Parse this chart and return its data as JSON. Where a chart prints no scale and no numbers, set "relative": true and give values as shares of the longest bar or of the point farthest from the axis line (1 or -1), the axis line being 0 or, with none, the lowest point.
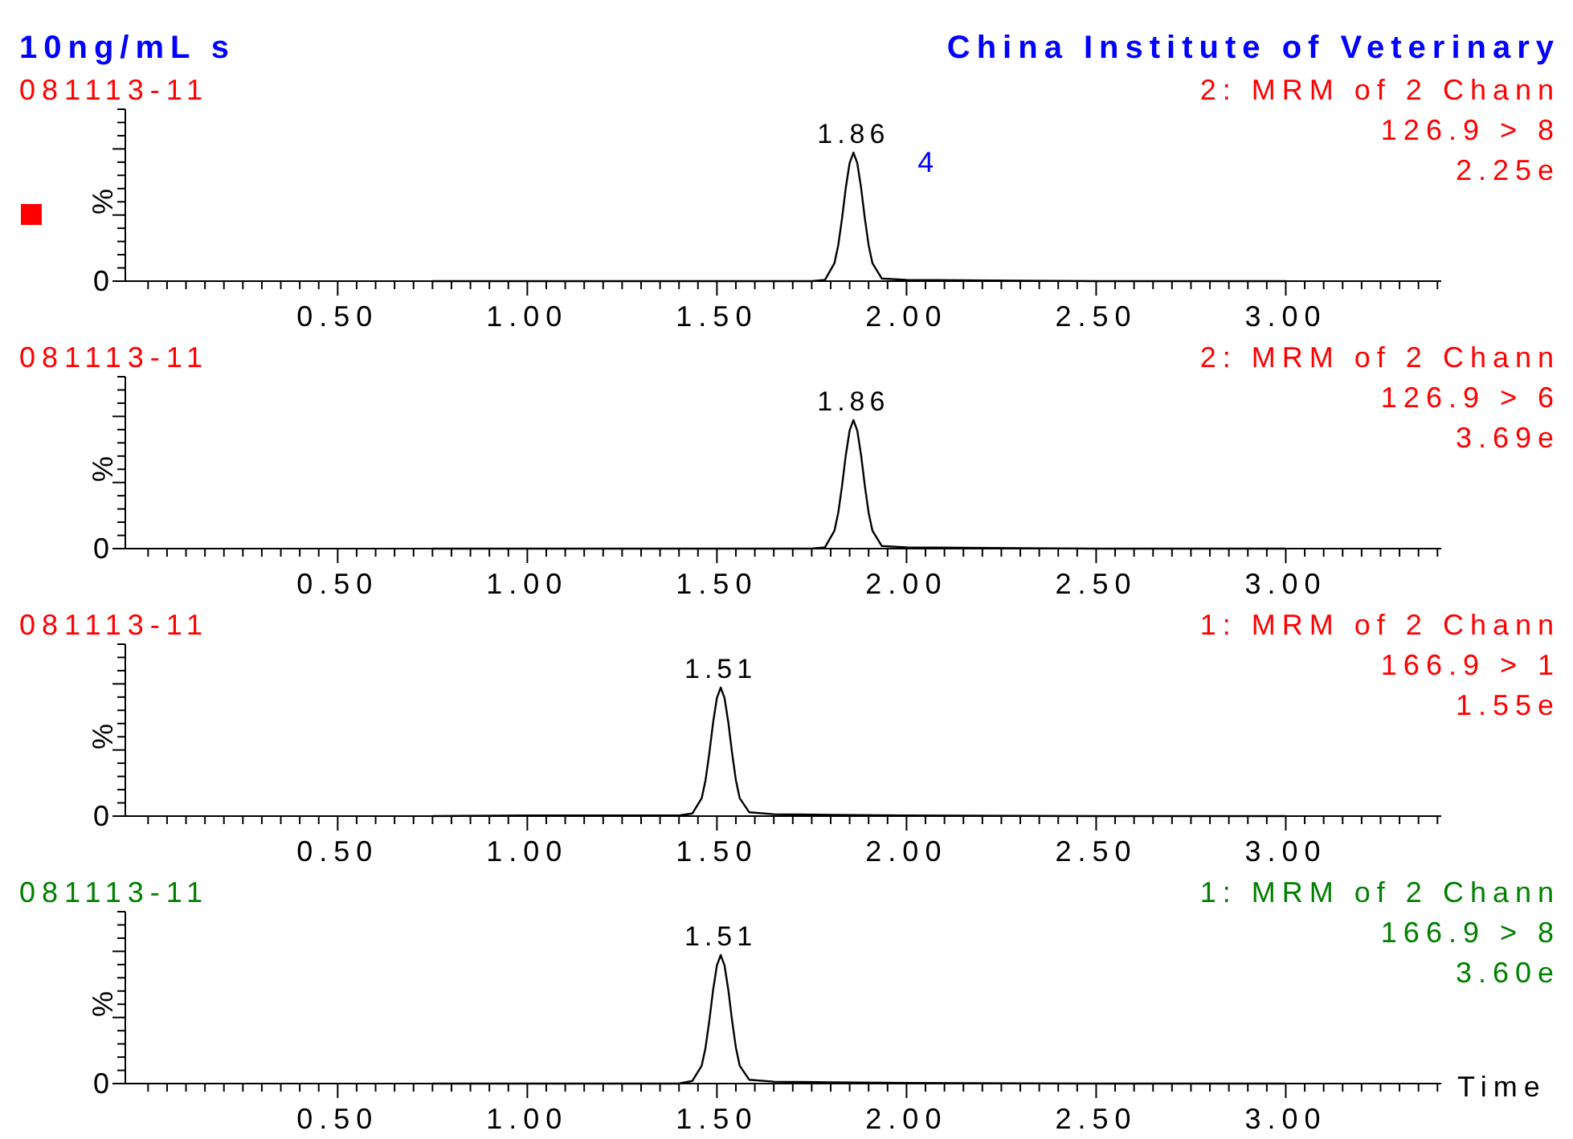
{
  "chart_data": [
    {
      "type": "line",
      "title": "10ng/mL s",
      "subtitle": "China Institute of Veterinary",
      "ylabel": "%",
      "relative": true,
      "xlim": [
        -0.06,
        3.41
      ],
      "xticks": [
        {
          "value": 0,
          "label": null
        },
        {
          "value": 0.05,
          "label": null
        },
        {
          "value": 0.1,
          "label": null
        },
        {
          "value": 0.15,
          "label": null
        },
        {
          "value": 0.2,
          "label": null
        },
        {
          "value": 0.25,
          "label": null
        },
        {
          "value": 0.3,
          "label": null
        },
        {
          "value": 0.35,
          "label": null
        },
        {
          "value": 0.4,
          "label": null
        },
        {
          "value": 0.45,
          "label": null
        },
        {
          "value": 0.5,
          "label": "0.50"
        },
        {
          "value": 0.55,
          "label": null
        },
        {
          "value": 0.6,
          "label": null
        },
        {
          "value": 0.65,
          "label": null
        },
        {
          "value": 0.7,
          "label": null
        },
        {
          "value": 0.75,
          "label": null
        },
        {
          "value": 0.8,
          "label": null
        },
        {
          "value": 0.85,
          "label": null
        },
        {
          "value": 0.9,
          "label": null
        },
        {
          "value": 0.95,
          "label": null
        },
        {
          "value": 1,
          "label": "1.00"
        },
        {
          "value": 1.05,
          "label": null
        },
        {
          "value": 1.1,
          "label": null
        },
        {
          "value": 1.15,
          "label": null
        },
        {
          "value": 1.2,
          "label": null
        },
        {
          "value": 1.25,
          "label": null
        },
        {
          "value": 1.3,
          "label": null
        },
        {
          "value": 1.35,
          "label": null
        },
        {
          "value": 1.4,
          "label": null
        },
        {
          "value": 1.45,
          "label": null
        },
        {
          "value": 1.5,
          "label": "1.50"
        },
        {
          "value": 1.55,
          "label": null
        },
        {
          "value": 1.6,
          "label": null
        },
        {
          "value": 1.65,
          "label": null
        },
        {
          "value": 1.7,
          "label": null
        },
        {
          "value": 1.75,
          "label": null
        },
        {
          "value": 1.8,
          "label": null
        },
        {
          "value": 1.85,
          "label": null
        },
        {
          "value": 1.9,
          "label": null
        },
        {
          "value": 1.95,
          "label": null
        },
        {
          "value": 2,
          "label": "2.00"
        },
        {
          "value": 2.05,
          "label": null
        },
        {
          "value": 2.1,
          "label": null
        },
        {
          "value": 2.15,
          "label": null
        },
        {
          "value": 2.2,
          "label": null
        },
        {
          "value": 2.25,
          "label": null
        },
        {
          "value": 2.3,
          "label": null
        },
        {
          "value": 2.35,
          "label": null
        },
        {
          "value": 2.4,
          "label": null
        },
        {
          "value": 2.45,
          "label": null
        },
        {
          "value": 2.5,
          "label": "2.50"
        },
        {
          "value": 2.55,
          "label": null
        },
        {
          "value": 2.6,
          "label": null
        },
        {
          "value": 2.65,
          "label": null
        },
        {
          "value": 2.7,
          "label": null
        },
        {
          "value": 2.75,
          "label": null
        },
        {
          "value": 2.8,
          "label": null
        },
        {
          "value": 2.85,
          "label": null
        },
        {
          "value": 2.9,
          "label": null
        },
        {
          "value": 2.95,
          "label": null
        },
        {
          "value": 3,
          "label": "3.00"
        },
        {
          "value": 3.05,
          "label": null
        },
        {
          "value": 3.1,
          "label": null
        },
        {
          "value": 3.15,
          "label": null
        },
        {
          "value": 3.2,
          "label": null
        },
        {
          "value": 3.25,
          "label": null
        },
        {
          "value": 3.3,
          "label": null
        },
        {
          "value": 3.35,
          "label": null
        },
        {
          "value": 3.4,
          "label": null
        }
      ],
      "annotations": [
        "081113-11",
        "2: MRM of 2 Chann",
        "126.9 > 8",
        "2.25e",
        "0",
        "1.86",
        "4"
      ],
      "series": [
        {
          "color": "#000000",
          "x": [
            0.75,
            1.0,
            1.5,
            1.75,
            1.785,
            1.81,
            1.82,
            1.83,
            1.84,
            1.85,
            1.86,
            1.87,
            1.88,
            1.89,
            1.9,
            1.91,
            1.935,
            2.0,
            2.5,
            3.0
          ],
          "values": [
            0,
            0,
            0,
            0,
            0.01,
            0.14,
            0.28,
            0.49,
            0.73,
            0.92,
            1,
            0.92,
            0.73,
            0.49,
            0.28,
            0.14,
            0.02,
            0.01,
            0,
            0
          ]
        }
      ]
    },
    {
      "type": "line",
      "ylabel": "%",
      "relative": true,
      "xlim": [
        -0.06,
        3.41
      ],
      "xticks": [
        {
          "value": 0,
          "label": null
        },
        {
          "value": 0.05,
          "label": null
        },
        {
          "value": 0.1,
          "label": null
        },
        {
          "value": 0.15,
          "label": null
        },
        {
          "value": 0.2,
          "label": null
        },
        {
          "value": 0.25,
          "label": null
        },
        {
          "value": 0.3,
          "label": null
        },
        {
          "value": 0.35,
          "label": null
        },
        {
          "value": 0.4,
          "label": null
        },
        {
          "value": 0.45,
          "label": null
        },
        {
          "value": 0.5,
          "label": "0.50"
        },
        {
          "value": 0.55,
          "label": null
        },
        {
          "value": 0.6,
          "label": null
        },
        {
          "value": 0.65,
          "label": null
        },
        {
          "value": 0.7,
          "label": null
        },
        {
          "value": 0.75,
          "label": null
        },
        {
          "value": 0.8,
          "label": null
        },
        {
          "value": 0.85,
          "label": null
        },
        {
          "value": 0.9,
          "label": null
        },
        {
          "value": 0.95,
          "label": null
        },
        {
          "value": 1,
          "label": "1.00"
        },
        {
          "value": 1.05,
          "label": null
        },
        {
          "value": 1.1,
          "label": null
        },
        {
          "value": 1.15,
          "label": null
        },
        {
          "value": 1.2,
          "label": null
        },
        {
          "value": 1.25,
          "label": null
        },
        {
          "value": 1.3,
          "label": null
        },
        {
          "value": 1.35,
          "label": null
        },
        {
          "value": 1.4,
          "label": null
        },
        {
          "value": 1.45,
          "label": null
        },
        {
          "value": 1.5,
          "label": "1.50"
        },
        {
          "value": 1.55,
          "label": null
        },
        {
          "value": 1.6,
          "label": null
        },
        {
          "value": 1.65,
          "label": null
        },
        {
          "value": 1.7,
          "label": null
        },
        {
          "value": 1.75,
          "label": null
        },
        {
          "value": 1.8,
          "label": null
        },
        {
          "value": 1.85,
          "label": null
        },
        {
          "value": 1.9,
          "label": null
        },
        {
          "value": 1.95,
          "label": null
        },
        {
          "value": 2,
          "label": "2.00"
        },
        {
          "value": 2.05,
          "label": null
        },
        {
          "value": 2.1,
          "label": null
        },
        {
          "value": 2.15,
          "label": null
        },
        {
          "value": 2.2,
          "label": null
        },
        {
          "value": 2.25,
          "label": null
        },
        {
          "value": 2.3,
          "label": null
        },
        {
          "value": 2.35,
          "label": null
        },
        {
          "value": 2.4,
          "label": null
        },
        {
          "value": 2.45,
          "label": null
        },
        {
          "value": 2.5,
          "label": "2.50"
        },
        {
          "value": 2.55,
          "label": null
        },
        {
          "value": 2.6,
          "label": null
        },
        {
          "value": 2.65,
          "label": null
        },
        {
          "value": 2.7,
          "label": null
        },
        {
          "value": 2.75,
          "label": null
        },
        {
          "value": 2.8,
          "label": null
        },
        {
          "value": 2.85,
          "label": null
        },
        {
          "value": 2.9,
          "label": null
        },
        {
          "value": 2.95,
          "label": null
        },
        {
          "value": 3,
          "label": "3.00"
        },
        {
          "value": 3.05,
          "label": null
        },
        {
          "value": 3.1,
          "label": null
        },
        {
          "value": 3.15,
          "label": null
        },
        {
          "value": 3.2,
          "label": null
        },
        {
          "value": 3.25,
          "label": null
        },
        {
          "value": 3.3,
          "label": null
        },
        {
          "value": 3.35,
          "label": null
        },
        {
          "value": 3.4,
          "label": null
        }
      ],
      "annotations": [
        "081113-11",
        "2: MRM of 2 Chann",
        "126.9 > 6",
        "3.69e",
        "0",
        "1.86"
      ],
      "series": [
        {
          "color": "#000000",
          "x": [
            0.75,
            1.0,
            1.5,
            1.75,
            1.785,
            1.81,
            1.82,
            1.83,
            1.84,
            1.85,
            1.86,
            1.87,
            1.88,
            1.89,
            1.9,
            1.91,
            1.935,
            2.0,
            2.5,
            3.0
          ],
          "values": [
            0,
            0,
            0,
            0,
            0.01,
            0.14,
            0.28,
            0.49,
            0.73,
            0.92,
            1,
            0.92,
            0.73,
            0.49,
            0.28,
            0.14,
            0.02,
            0.01,
            0,
            0
          ]
        }
      ]
    },
    {
      "type": "line",
      "ylabel": "%",
      "relative": true,
      "xlim": [
        -0.06,
        3.41
      ],
      "xticks": [
        {
          "value": 0,
          "label": null
        },
        {
          "value": 0.05,
          "label": null
        },
        {
          "value": 0.1,
          "label": null
        },
        {
          "value": 0.15,
          "label": null
        },
        {
          "value": 0.2,
          "label": null
        },
        {
          "value": 0.25,
          "label": null
        },
        {
          "value": 0.3,
          "label": null
        },
        {
          "value": 0.35,
          "label": null
        },
        {
          "value": 0.4,
          "label": null
        },
        {
          "value": 0.45,
          "label": null
        },
        {
          "value": 0.5,
          "label": "0.50"
        },
        {
          "value": 0.55,
          "label": null
        },
        {
          "value": 0.6,
          "label": null
        },
        {
          "value": 0.65,
          "label": null
        },
        {
          "value": 0.7,
          "label": null
        },
        {
          "value": 0.75,
          "label": null
        },
        {
          "value": 0.8,
          "label": null
        },
        {
          "value": 0.85,
          "label": null
        },
        {
          "value": 0.9,
          "label": null
        },
        {
          "value": 0.95,
          "label": null
        },
        {
          "value": 1,
          "label": "1.00"
        },
        {
          "value": 1.05,
          "label": null
        },
        {
          "value": 1.1,
          "label": null
        },
        {
          "value": 1.15,
          "label": null
        },
        {
          "value": 1.2,
          "label": null
        },
        {
          "value": 1.25,
          "label": null
        },
        {
          "value": 1.3,
          "label": null
        },
        {
          "value": 1.35,
          "label": null
        },
        {
          "value": 1.4,
          "label": null
        },
        {
          "value": 1.45,
          "label": null
        },
        {
          "value": 1.5,
          "label": "1.50"
        },
        {
          "value": 1.55,
          "label": null
        },
        {
          "value": 1.6,
          "label": null
        },
        {
          "value": 1.65,
          "label": null
        },
        {
          "value": 1.7,
          "label": null
        },
        {
          "value": 1.75,
          "label": null
        },
        {
          "value": 1.8,
          "label": null
        },
        {
          "value": 1.85,
          "label": null
        },
        {
          "value": 1.9,
          "label": null
        },
        {
          "value": 1.95,
          "label": null
        },
        {
          "value": 2,
          "label": "2.00"
        },
        {
          "value": 2.05,
          "label": null
        },
        {
          "value": 2.1,
          "label": null
        },
        {
          "value": 2.15,
          "label": null
        },
        {
          "value": 2.2,
          "label": null
        },
        {
          "value": 2.25,
          "label": null
        },
        {
          "value": 2.3,
          "label": null
        },
        {
          "value": 2.35,
          "label": null
        },
        {
          "value": 2.4,
          "label": null
        },
        {
          "value": 2.45,
          "label": null
        },
        {
          "value": 2.5,
          "label": "2.50"
        },
        {
          "value": 2.55,
          "label": null
        },
        {
          "value": 2.6,
          "label": null
        },
        {
          "value": 2.65,
          "label": null
        },
        {
          "value": 2.7,
          "label": null
        },
        {
          "value": 2.75,
          "label": null
        },
        {
          "value": 2.8,
          "label": null
        },
        {
          "value": 2.85,
          "label": null
        },
        {
          "value": 2.9,
          "label": null
        },
        {
          "value": 2.95,
          "label": null
        },
        {
          "value": 3,
          "label": "3.00"
        },
        {
          "value": 3.05,
          "label": null
        },
        {
          "value": 3.1,
          "label": null
        },
        {
          "value": 3.15,
          "label": null
        },
        {
          "value": 3.2,
          "label": null
        },
        {
          "value": 3.25,
          "label": null
        },
        {
          "value": 3.3,
          "label": null
        },
        {
          "value": 3.35,
          "label": null
        },
        {
          "value": 3.4,
          "label": null
        }
      ],
      "annotations": [
        "081113-11",
        "1: MRM of 2 Chann",
        "166.9 > 1",
        "1.55e",
        "0",
        "1.51"
      ],
      "series": [
        {
          "color": "#000000",
          "x": [
            0.75,
            1.0,
            1.25,
            1.4,
            1.435,
            1.46,
            1.47,
            1.48,
            1.49,
            1.5,
            1.51,
            1.52,
            1.53,
            1.54,
            1.55,
            1.56,
            1.585,
            1.65,
            1.8,
            2.0,
            2.5,
            3.0
          ],
          "values": [
            0,
            0.005,
            0.005,
            0.005,
            0.02,
            0.14,
            0.28,
            0.49,
            0.73,
            0.92,
            1,
            0.92,
            0.73,
            0.49,
            0.28,
            0.14,
            0.03,
            0.015,
            0.01,
            0.005,
            0,
            0
          ]
        }
      ]
    },
    {
      "type": "line",
      "ylabel": "%",
      "relative": true,
      "xlim": [
        -0.06,
        3.41
      ],
      "xticks": [
        {
          "value": 0,
          "label": null
        },
        {
          "value": 0.05,
          "label": null
        },
        {
          "value": 0.1,
          "label": null
        },
        {
          "value": 0.15,
          "label": null
        },
        {
          "value": 0.2,
          "label": null
        },
        {
          "value": 0.25,
          "label": null
        },
        {
          "value": 0.3,
          "label": null
        },
        {
          "value": 0.35,
          "label": null
        },
        {
          "value": 0.4,
          "label": null
        },
        {
          "value": 0.45,
          "label": null
        },
        {
          "value": 0.5,
          "label": "0.50"
        },
        {
          "value": 0.55,
          "label": null
        },
        {
          "value": 0.6,
          "label": null
        },
        {
          "value": 0.65,
          "label": null
        },
        {
          "value": 0.7,
          "label": null
        },
        {
          "value": 0.75,
          "label": null
        },
        {
          "value": 0.8,
          "label": null
        },
        {
          "value": 0.85,
          "label": null
        },
        {
          "value": 0.9,
          "label": null
        },
        {
          "value": 0.95,
          "label": null
        },
        {
          "value": 1,
          "label": "1.00"
        },
        {
          "value": 1.05,
          "label": null
        },
        {
          "value": 1.1,
          "label": null
        },
        {
          "value": 1.15,
          "label": null
        },
        {
          "value": 1.2,
          "label": null
        },
        {
          "value": 1.25,
          "label": null
        },
        {
          "value": 1.3,
          "label": null
        },
        {
          "value": 1.35,
          "label": null
        },
        {
          "value": 1.4,
          "label": null
        },
        {
          "value": 1.45,
          "label": null
        },
        {
          "value": 1.5,
          "label": "1.50"
        },
        {
          "value": 1.55,
          "label": null
        },
        {
          "value": 1.6,
          "label": null
        },
        {
          "value": 1.65,
          "label": null
        },
        {
          "value": 1.7,
          "label": null
        },
        {
          "value": 1.75,
          "label": null
        },
        {
          "value": 1.8,
          "label": null
        },
        {
          "value": 1.85,
          "label": null
        },
        {
          "value": 1.9,
          "label": null
        },
        {
          "value": 1.95,
          "label": null
        },
        {
          "value": 2,
          "label": "2.00"
        },
        {
          "value": 2.05,
          "label": null
        },
        {
          "value": 2.1,
          "label": null
        },
        {
          "value": 2.15,
          "label": null
        },
        {
          "value": 2.2,
          "label": null
        },
        {
          "value": 2.25,
          "label": null
        },
        {
          "value": 2.3,
          "label": null
        },
        {
          "value": 2.35,
          "label": null
        },
        {
          "value": 2.4,
          "label": null
        },
        {
          "value": 2.45,
          "label": null
        },
        {
          "value": 2.5,
          "label": "2.50"
        },
        {
          "value": 2.55,
          "label": null
        },
        {
          "value": 2.6,
          "label": null
        },
        {
          "value": 2.65,
          "label": null
        },
        {
          "value": 2.7,
          "label": null
        },
        {
          "value": 2.75,
          "label": null
        },
        {
          "value": 2.8,
          "label": null
        },
        {
          "value": 2.85,
          "label": null
        },
        {
          "value": 2.9,
          "label": null
        },
        {
          "value": 2.95,
          "label": null
        },
        {
          "value": 3,
          "label": "3.00"
        },
        {
          "value": 3.05,
          "label": null
        },
        {
          "value": 3.1,
          "label": null
        },
        {
          "value": 3.15,
          "label": null
        },
        {
          "value": 3.2,
          "label": null
        },
        {
          "value": 3.25,
          "label": null
        },
        {
          "value": 3.3,
          "label": null
        },
        {
          "value": 3.35,
          "label": null
        },
        {
          "value": 3.4,
          "label": null
        }
      ],
      "xlabel": "Time",
      "annotations": [
        "081113-11",
        "1: MRM of 2 Chann",
        "166.9 > 8",
        "3.60e",
        "0",
        "1.51"
      ],
      "series": [
        {
          "color": "#000000",
          "x": [
            0.75,
            1.0,
            1.25,
            1.4,
            1.435,
            1.46,
            1.47,
            1.48,
            1.49,
            1.5,
            1.51,
            1.52,
            1.53,
            1.54,
            1.55,
            1.56,
            1.585,
            1.65,
            1.8,
            2.0,
            2.5,
            3.0
          ],
          "values": [
            0,
            0,
            0,
            0,
            0.02,
            0.14,
            0.28,
            0.49,
            0.73,
            0.92,
            1,
            0.92,
            0.73,
            0.49,
            0.28,
            0.14,
            0.03,
            0.015,
            0.01,
            0.005,
            0,
            0
          ]
        }
      ]
    }
  ]
}
